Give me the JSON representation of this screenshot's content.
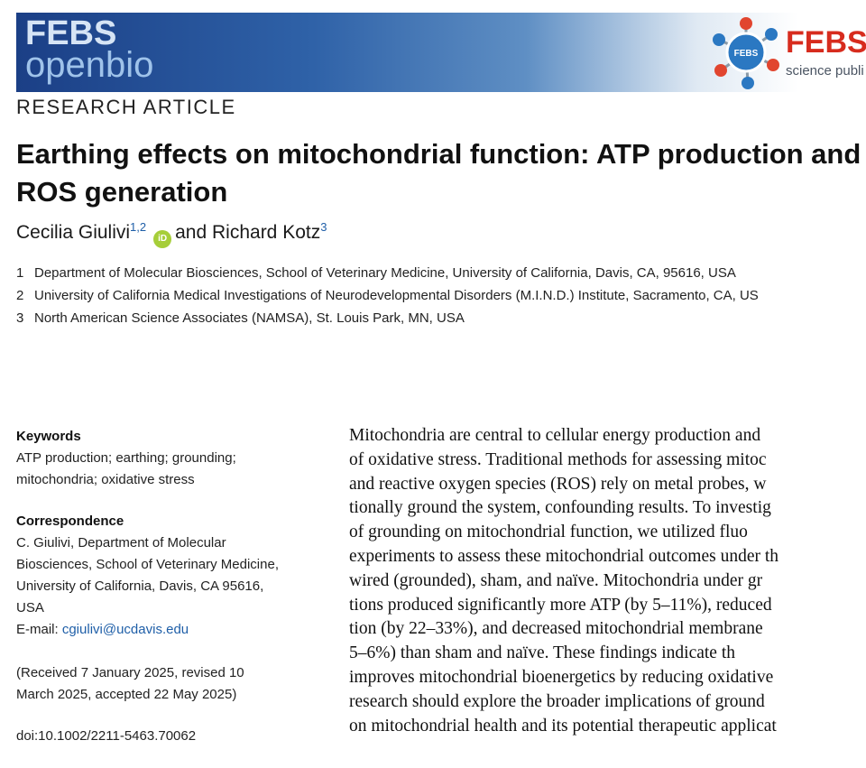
{
  "header": {
    "journal_name_top": "FEBS",
    "journal_name_bottom": "openbio",
    "publisher_name": "FEBS",
    "publisher_sub": "science publi",
    "publisher_badge": "FEBS"
  },
  "article": {
    "type": "RESEARCH ARTICLE",
    "title": "Earthing effects on mitochondrial function: ATP production and ROS generation",
    "authors": [
      {
        "name": "Cecilia Giulivi",
        "sup": "1,2",
        "orcid": "iD"
      },
      {
        "name": "Richard Kotz",
        "sup": "3"
      }
    ],
    "author_conjunction": "and",
    "affiliations": [
      {
        "num": "1",
        "text": "Department of Molecular Biosciences, School of Veterinary Medicine, University of California, Davis, CA, 95616, USA"
      },
      {
        "num": "2",
        "text": "University of California Medical Investigations of Neurodevelopmental Disorders (M.I.N.D.) Institute, Sacramento, CA, US"
      },
      {
        "num": "3",
        "text": "North American Science Associates (NAMSA), St. Louis Park, MN, USA"
      }
    ]
  },
  "sidebar": {
    "keywords_heading": "Keywords",
    "keywords_lines": [
      "ATP production; earthing; grounding;",
      "mitochondria; oxidative stress"
    ],
    "correspondence_heading": "Correspondence",
    "correspondence_lines": [
      "C. Giulivi, Department of Molecular",
      "Biosciences, School of Veterinary Medicine,",
      "University of California, Davis, CA 95616,",
      "USA"
    ],
    "email_label": "E-mail: ",
    "email": "cgiulivi@ucdavis.edu",
    "received_lines": [
      "(Received 7 January 2025, revised 10",
      "March 2025, accepted 22 May 2025)"
    ],
    "doi": "doi:10.1002/2211-5463.70062"
  },
  "abstract": {
    "lines": [
      "Mitochondria are central to cellular energy production and",
      "of oxidative stress. Traditional methods for assessing mitoc",
      "and reactive oxygen species (ROS) rely on metal probes, w",
      "tionally ground the system, confounding results. To investig",
      "of grounding on mitochondrial function, we utilized fluo",
      "experiments to assess these mitochondrial outcomes under th",
      "wired (grounded), sham, and naïve. Mitochondria under gr",
      "tions produced significantly more ATP (by 5–11%), reduced",
      "tion (by 22–33%), and decreased mitochondrial membrane",
      "5–6%) than sham and naïve. These findings indicate th",
      "improves mitochondrial bioenergetics by reducing oxidative",
      "research should explore the broader implications of ground",
      "on mitochondrial health and its potential therapeutic applicat"
    ]
  }
}
